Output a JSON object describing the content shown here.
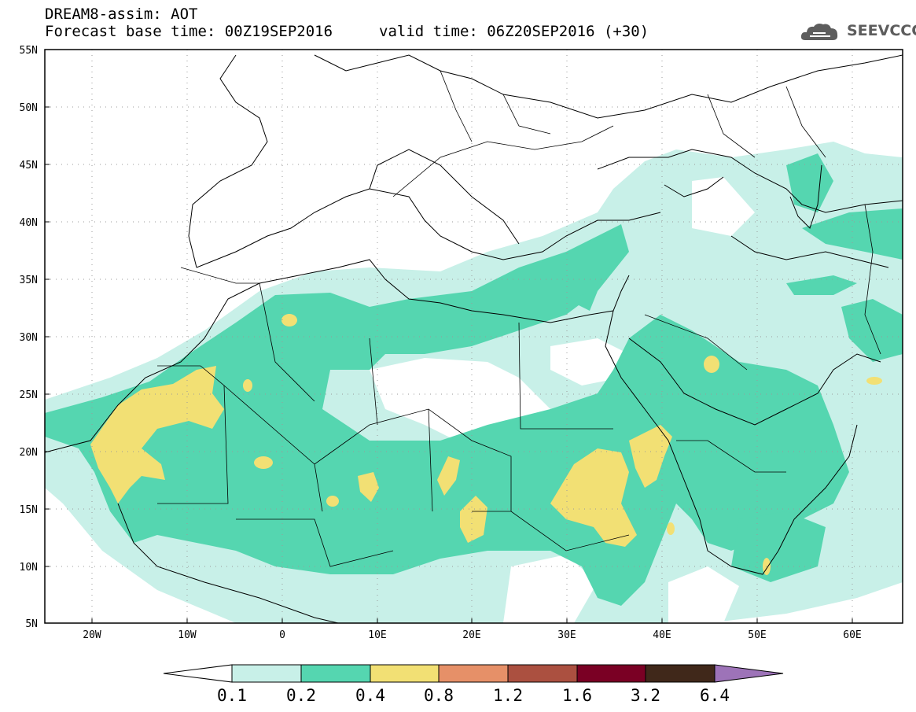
{
  "header": {
    "title_line1": "DREAM8-assim: AOT",
    "title_line2": "Forecast base time: 00Z19SEP2016",
    "valid_time": "valid time: 06Z20SEP2016 (+30)",
    "logo_text": "SEEVCCC",
    "logo_icon": "cloud-icon"
  },
  "map": {
    "projection": "lat-lon",
    "lon_range": [
      -25,
      65
    ],
    "lat_range": [
      5,
      55
    ],
    "grid": "dotted",
    "lat_ticks": [
      "55N",
      "50N",
      "45N",
      "40N",
      "35N",
      "30N",
      "25N",
      "20N",
      "15N",
      "10N",
      "5N"
    ],
    "lon_ticks": [
      "20W",
      "10W",
      "0",
      "10E",
      "20E",
      "30E",
      "40E",
      "50E",
      "60E"
    ]
  },
  "colorbar": {
    "levels": [
      "0.1",
      "0.2",
      "0.4",
      "0.8",
      "1.2",
      "1.6",
      "3.2",
      "6.4"
    ],
    "colors": [
      "#c8f0e8",
      "#55d6b0",
      "#f2e074",
      "#e69068",
      "#ab5040",
      "#7a0024",
      "#40281a"
    ],
    "under_color": "#ffffff",
    "over_color": "#9d73b8"
  }
}
